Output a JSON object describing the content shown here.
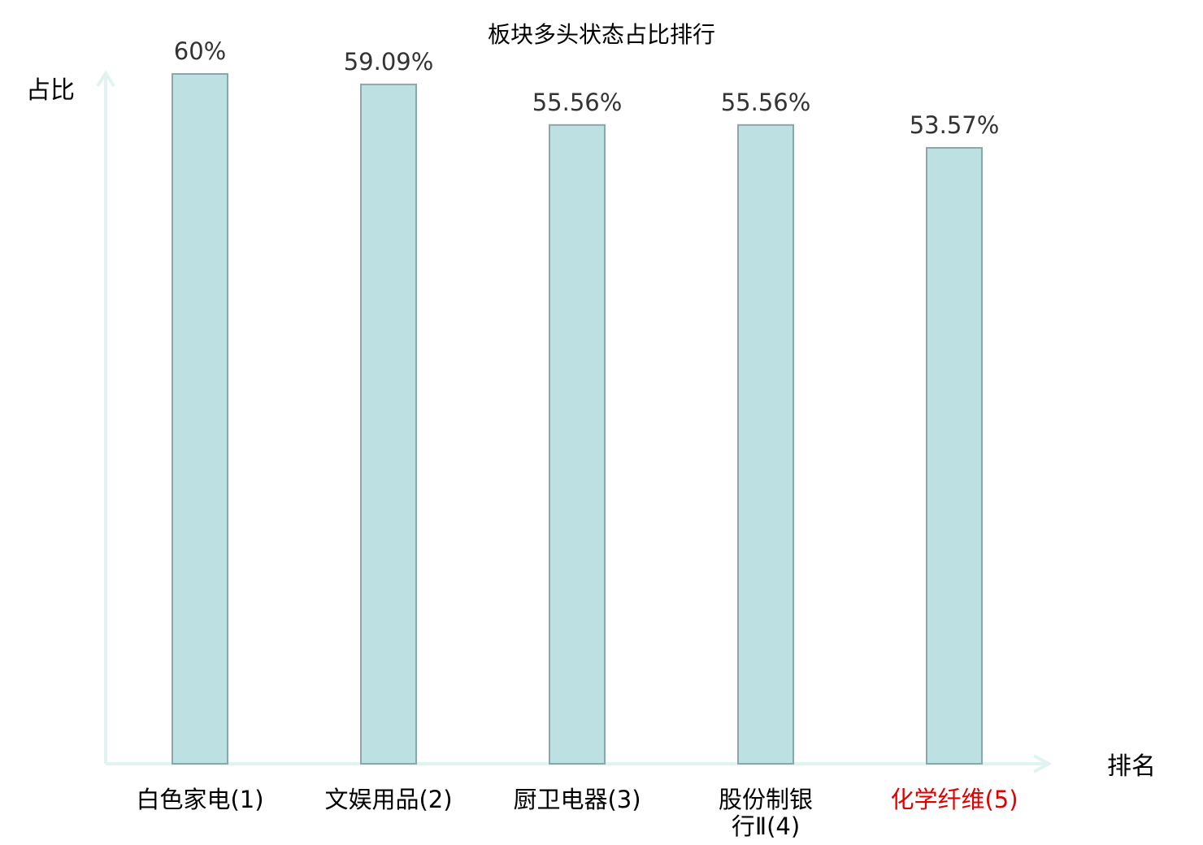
{
  "chart_data": {
    "type": "bar",
    "title": "板块多头状态占比排行",
    "ylabel": "占比",
    "xlabel": "排名",
    "ylim": [
      0,
      60
    ],
    "grid": false,
    "categories": [
      {
        "lines": [
          "白色家电(1)"
        ],
        "highlight": false
      },
      {
        "lines": [
          "文娱用品(2)"
        ],
        "highlight": false
      },
      {
        "lines": [
          "厨卫电器(3)"
        ],
        "highlight": false
      },
      {
        "lines": [
          "股份制银",
          "行Ⅱ(4)"
        ],
        "highlight": false
      },
      {
        "lines": [
          "化学纤维(5)"
        ],
        "highlight": true
      }
    ],
    "values": [
      60,
      59.09,
      55.56,
      55.56,
      53.57
    ],
    "value_labels": [
      "60%",
      "59.09%",
      "55.56%",
      "55.56%",
      "53.57%"
    ]
  },
  "colors": {
    "bar_fill": "#bde1e3",
    "bar_stroke": "#8aa8aa",
    "axis": "#e0f3f1",
    "highlight_label": "#e00000",
    "normal_label": "#000000"
  }
}
